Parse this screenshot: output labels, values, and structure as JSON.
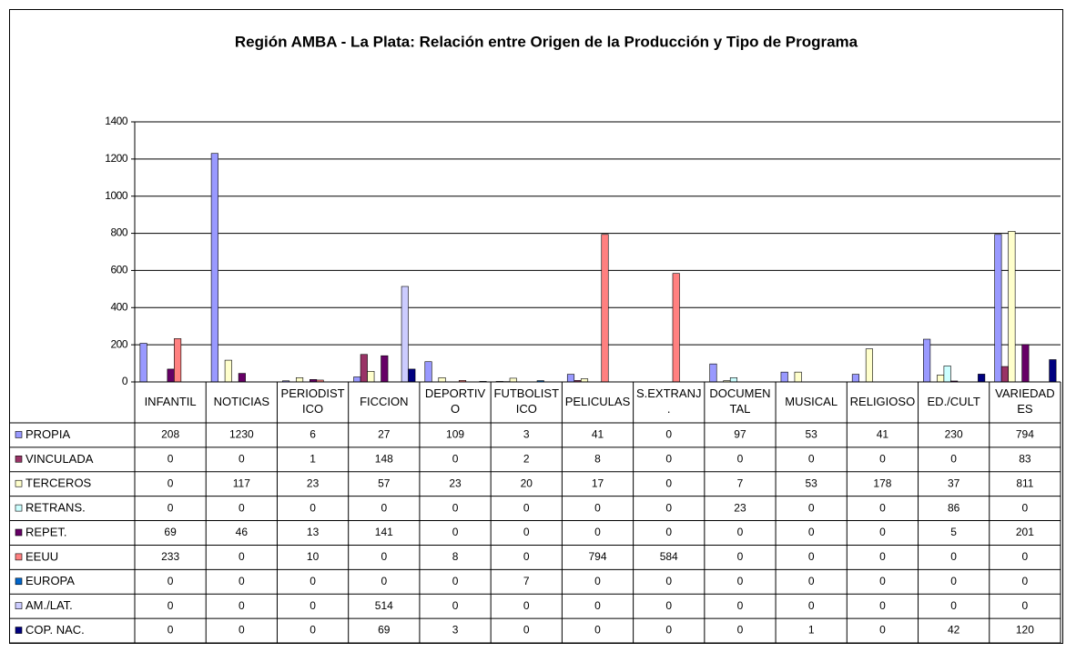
{
  "chart_data": {
    "type": "bar",
    "title": "Región AMBA - La Plata: Relación entre Origen de la Producción y Tipo de Programa",
    "categories": [
      "INFANTIL",
      "NOTICIAS",
      "PERIODISTICO",
      "FICCION",
      "DEPORTIVO",
      "FUTBOLISTICO",
      "PELICULAS",
      "S.EXTRANJ.",
      "DOCUMENTAL",
      "MUSICAL",
      "RELIGIOSO",
      "ED./CULT",
      "VARIEDADES"
    ],
    "series": [
      {
        "name": "PROPIA",
        "color": "#9999ff",
        "values": [
          208,
          1230,
          6,
          27,
          109,
          3,
          41,
          0,
          97,
          53,
          41,
          230,
          794
        ]
      },
      {
        "name": "VINCULADA",
        "color": "#993366",
        "values": [
          0,
          0,
          1,
          148,
          0,
          2,
          8,
          0,
          0,
          0,
          0,
          0,
          83
        ]
      },
      {
        "name": "TERCEROS",
        "color": "#ffffcc",
        "values": [
          0,
          117,
          23,
          57,
          23,
          20,
          17,
          0,
          7,
          53,
          178,
          37,
          811
        ]
      },
      {
        "name": "RETRANS.",
        "color": "#ccffff",
        "values": [
          0,
          0,
          0,
          0,
          0,
          0,
          0,
          0,
          23,
          0,
          0,
          86,
          0
        ]
      },
      {
        "name": "REPET.",
        "color": "#660066",
        "values": [
          69,
          46,
          13,
          141,
          0,
          0,
          0,
          0,
          0,
          0,
          0,
          5,
          201
        ]
      },
      {
        "name": "EEUU",
        "color": "#ff8080",
        "values": [
          233,
          0,
          10,
          0,
          8,
          0,
          794,
          584,
          0,
          0,
          0,
          0,
          0
        ]
      },
      {
        "name": "EUROPA",
        "color": "#0066cc",
        "values": [
          0,
          0,
          0,
          0,
          0,
          7,
          0,
          0,
          0,
          0,
          0,
          0,
          0
        ]
      },
      {
        "name": "AM./LAT.",
        "color": "#ccccff",
        "values": [
          0,
          0,
          0,
          514,
          0,
          0,
          0,
          0,
          0,
          0,
          0,
          0,
          0
        ]
      },
      {
        "name": "COP. NAC.",
        "color": "#000080",
        "values": [
          0,
          0,
          0,
          69,
          3,
          0,
          0,
          0,
          0,
          1,
          0,
          42,
          120
        ]
      }
    ],
    "ylim": [
      0,
      1400
    ],
    "yticks": [
      0,
      200,
      400,
      600,
      800,
      1000,
      1200,
      1400
    ],
    "grid": true
  }
}
